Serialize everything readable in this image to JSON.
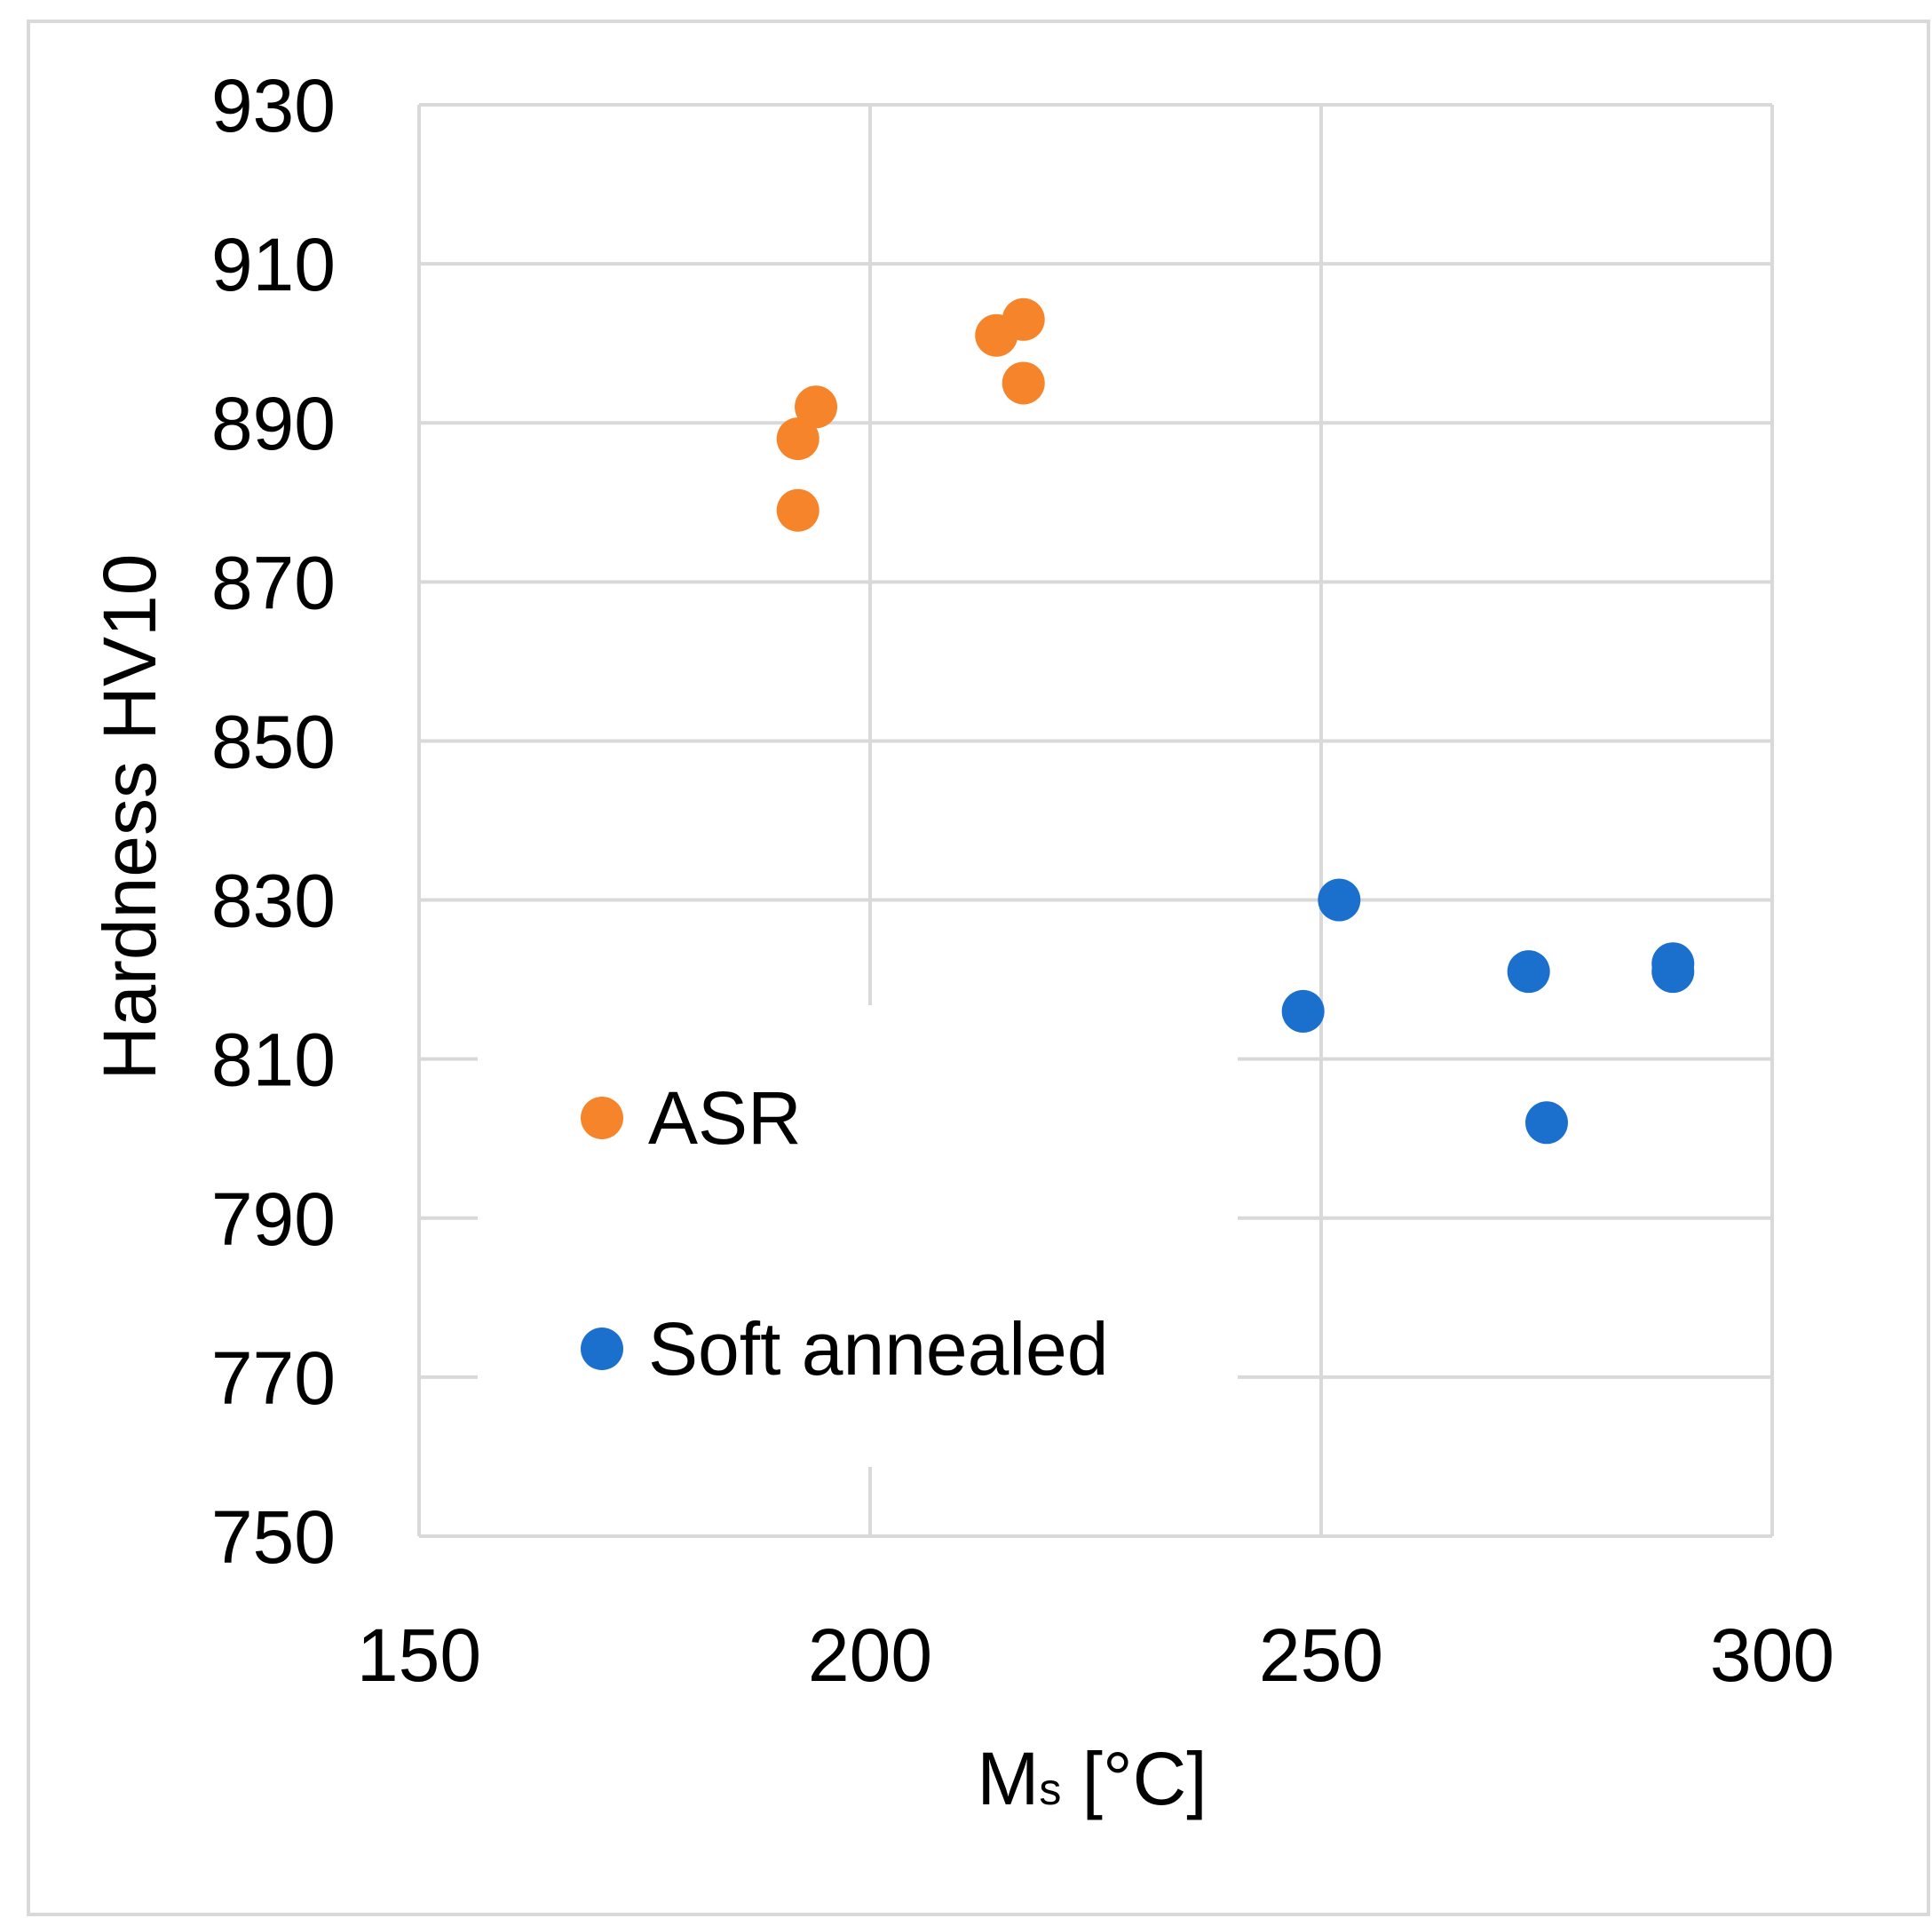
{
  "chart_data": {
    "type": "scatter",
    "title": "",
    "xlabel": "Ms [°C]",
    "xlabel_main": "M",
    "xlabel_sub": "s",
    "xlabel_unit": " [°C]",
    "ylabel": "Hardness HV10",
    "xlim": [
      150,
      300
    ],
    "ylim": [
      750,
      930
    ],
    "xticks": [
      150,
      200,
      250,
      300
    ],
    "yticks": [
      750,
      770,
      790,
      810,
      830,
      850,
      870,
      890,
      910,
      930
    ],
    "grid": true,
    "legend_position": "inside-lower-left",
    "series": [
      {
        "name": "ASR",
        "color": "#f5842a",
        "points": [
          {
            "x": 192,
            "y": 879
          },
          {
            "x": 192,
            "y": 888
          },
          {
            "x": 194,
            "y": 892
          },
          {
            "x": 214,
            "y": 901
          },
          {
            "x": 217,
            "y": 903
          },
          {
            "x": 217,
            "y": 895
          }
        ]
      },
      {
        "name": "Soft annealed",
        "color": "#1a70cc",
        "points": [
          {
            "x": 248,
            "y": 816
          },
          {
            "x": 252,
            "y": 830
          },
          {
            "x": 273,
            "y": 821
          },
          {
            "x": 275,
            "y": 802
          },
          {
            "x": 289,
            "y": 822
          },
          {
            "x": 289,
            "y": 821
          }
        ]
      }
    ]
  }
}
